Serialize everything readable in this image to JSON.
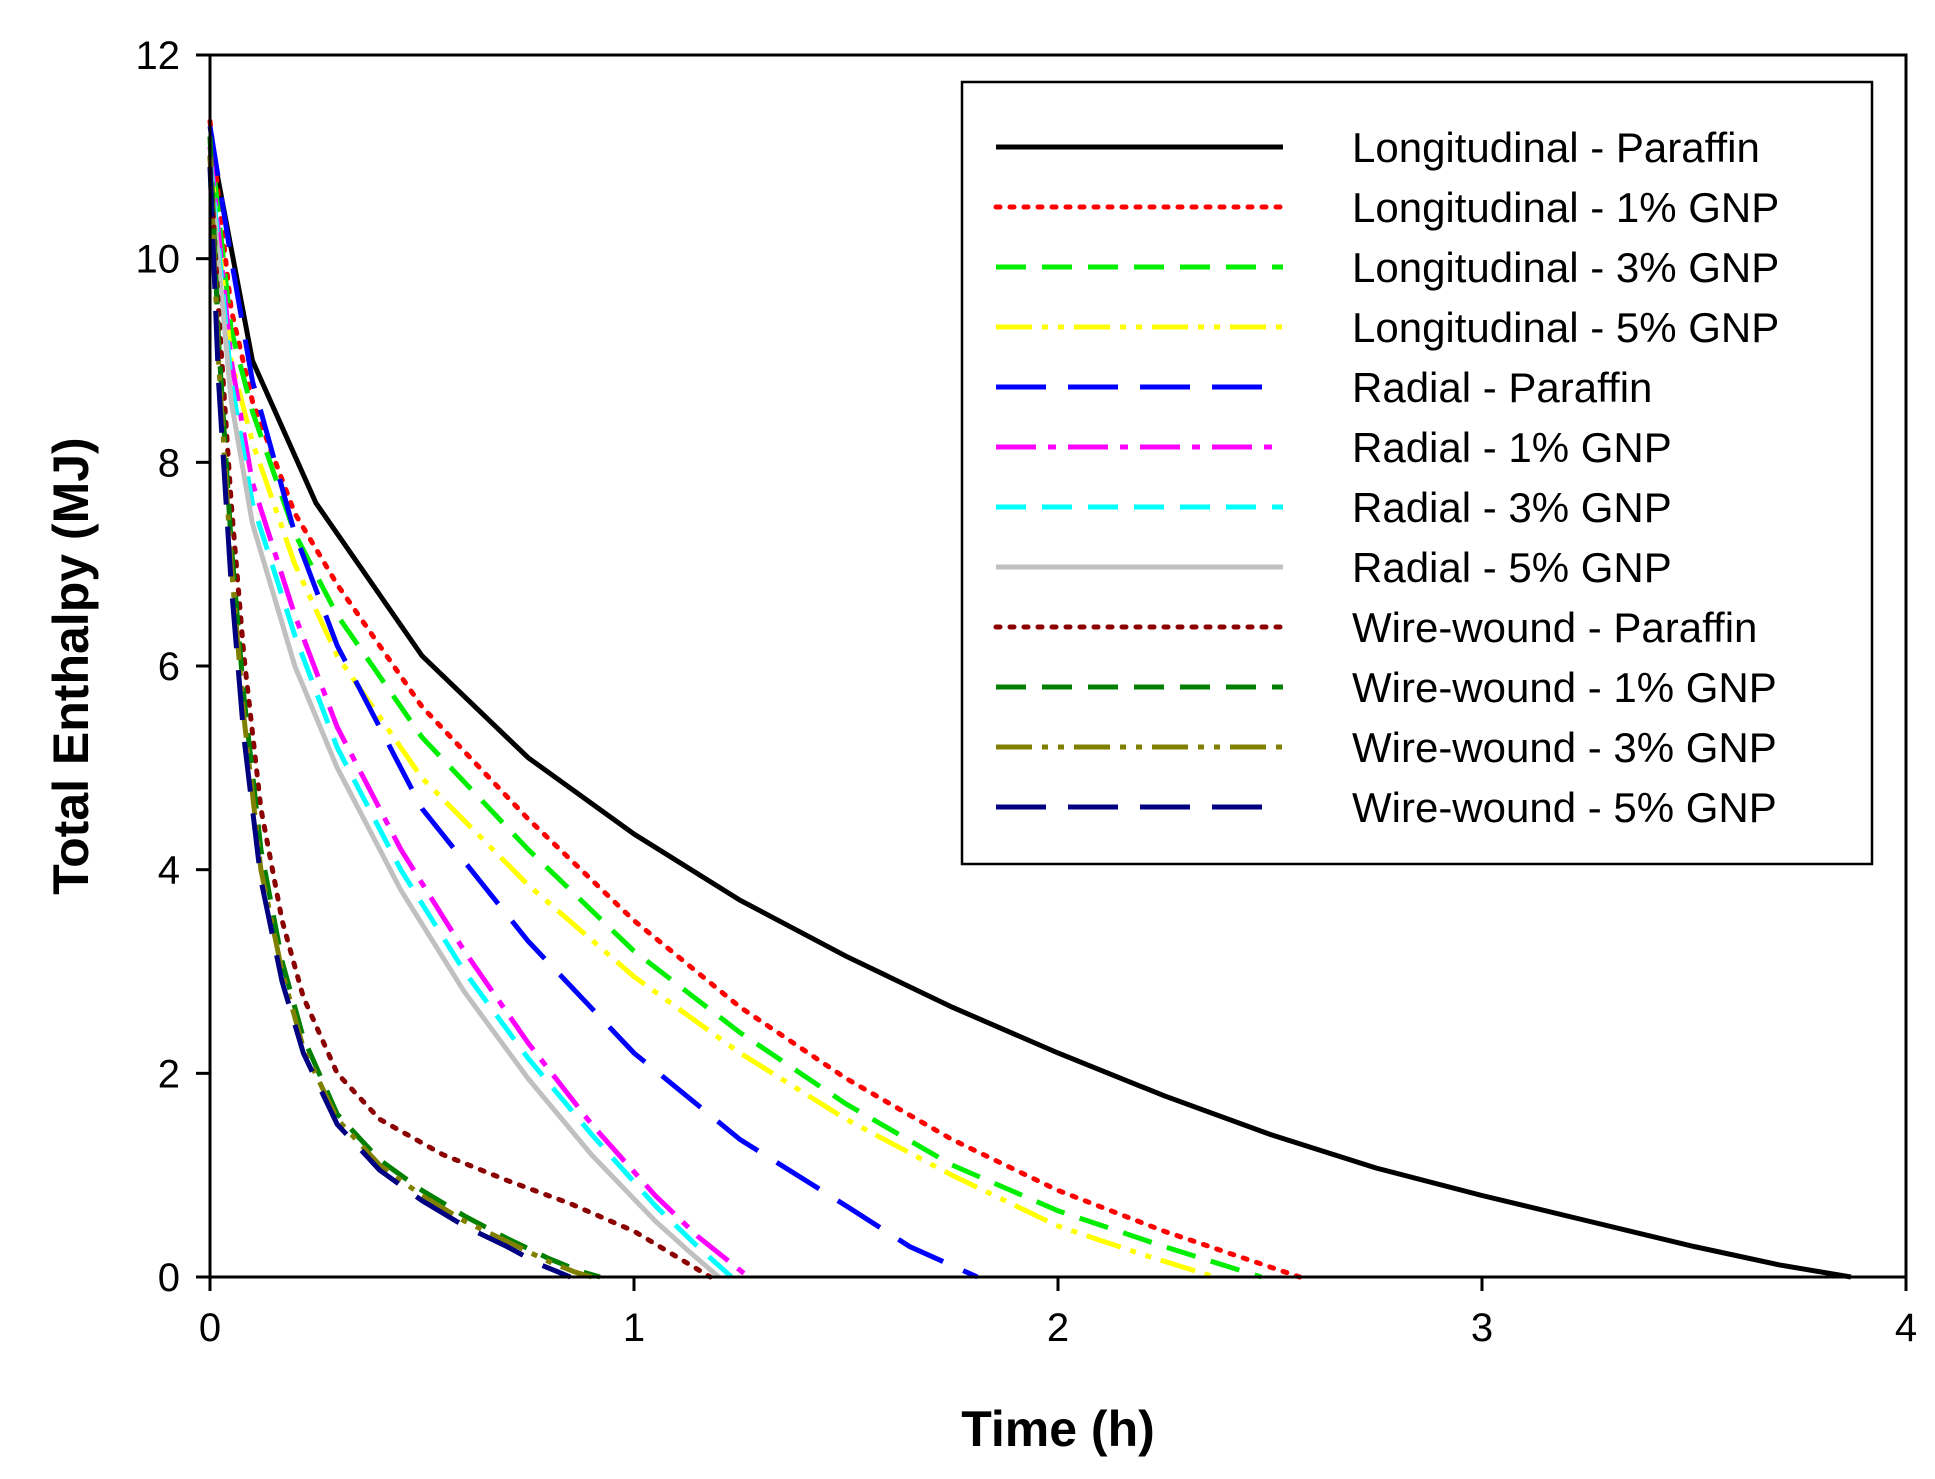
{
  "chart_data": {
    "type": "line",
    "title": "",
    "xlabel": "Time (h)",
    "ylabel": "Total Enthalpy (MJ)",
    "xlim": [
      0,
      4
    ],
    "ylim": [
      0,
      12
    ],
    "xticks": [
      0,
      1,
      2,
      3,
      4
    ],
    "yticks": [
      0,
      2,
      4,
      6,
      8,
      10,
      12
    ],
    "grid": false,
    "legend_position": "top-right",
    "series": [
      {
        "name": "Longitudinal - Paraffin",
        "color": "#000000",
        "style": "solid",
        "x": [
          0,
          0.1,
          0.25,
          0.5,
          0.75,
          1.0,
          1.25,
          1.5,
          1.75,
          2.0,
          2.25,
          2.5,
          2.75,
          3.0,
          3.25,
          3.5,
          3.7,
          3.87
        ],
        "y": [
          11.2,
          9.0,
          7.6,
          6.1,
          5.1,
          4.35,
          3.7,
          3.15,
          2.65,
          2.2,
          1.78,
          1.4,
          1.07,
          0.8,
          0.55,
          0.3,
          0.12,
          0
        ]
      },
      {
        "name": "Longitudinal - 1% GNP",
        "color": "#ff0000",
        "style": "dotted",
        "x": [
          0,
          0.05,
          0.1,
          0.2,
          0.3,
          0.5,
          0.75,
          1.0,
          1.25,
          1.5,
          1.75,
          2.0,
          2.25,
          2.57
        ],
        "y": [
          11.35,
          9.5,
          8.6,
          7.5,
          6.8,
          5.6,
          4.5,
          3.5,
          2.65,
          1.95,
          1.35,
          0.85,
          0.45,
          0
        ]
      },
      {
        "name": "Longitudinal - 3% GNP",
        "color": "#00ee00",
        "style": "dashed",
        "x": [
          0,
          0.05,
          0.1,
          0.2,
          0.3,
          0.5,
          0.75,
          1.0,
          1.25,
          1.5,
          1.75,
          2.0,
          2.25,
          2.48
        ],
        "y": [
          11.2,
          9.3,
          8.5,
          7.3,
          6.5,
          5.3,
          4.2,
          3.2,
          2.4,
          1.7,
          1.1,
          0.65,
          0.3,
          0
        ]
      },
      {
        "name": "Longitudinal - 5% GNP",
        "color": "#ffff00",
        "style": "dashdotdot",
        "x": [
          0,
          0.05,
          0.1,
          0.2,
          0.3,
          0.5,
          0.75,
          1.0,
          1.25,
          1.5,
          1.75,
          2.0,
          2.2,
          2.37
        ],
        "y": [
          11.0,
          9.0,
          8.2,
          7.0,
          6.1,
          4.9,
          3.85,
          2.95,
          2.2,
          1.55,
          1.0,
          0.5,
          0.22,
          0
        ]
      },
      {
        "name": "Radial - Paraffin",
        "color": "#0000ff",
        "style": "longdash",
        "x": [
          0,
          0.05,
          0.1,
          0.2,
          0.3,
          0.5,
          0.75,
          1.0,
          1.25,
          1.5,
          1.65,
          1.81
        ],
        "y": [
          11.3,
          10.0,
          8.8,
          7.3,
          6.2,
          4.6,
          3.3,
          2.2,
          1.35,
          0.7,
          0.3,
          0
        ]
      },
      {
        "name": "Radial - 1% GNP",
        "color": "#ff00ff",
        "style": "dashdot",
        "x": [
          0,
          0.05,
          0.1,
          0.2,
          0.3,
          0.45,
          0.6,
          0.75,
          0.9,
          1.05,
          1.15,
          1.27
        ],
        "y": [
          11.1,
          9.0,
          7.8,
          6.5,
          5.4,
          4.2,
          3.2,
          2.3,
          1.5,
          0.8,
          0.4,
          0
        ]
      },
      {
        "name": "Radial - 3% GNP",
        "color": "#00ffff",
        "style": "dashed",
        "x": [
          0,
          0.05,
          0.1,
          0.2,
          0.3,
          0.45,
          0.6,
          0.75,
          0.9,
          1.05,
          1.15,
          1.23
        ],
        "y": [
          11.0,
          8.8,
          7.6,
          6.3,
          5.2,
          4.0,
          3.0,
          2.15,
          1.4,
          0.7,
          0.3,
          0
        ]
      },
      {
        "name": "Radial - 5% GNP",
        "color": "#c0c0c0",
        "style": "solid",
        "x": [
          0,
          0.05,
          0.1,
          0.2,
          0.3,
          0.45,
          0.6,
          0.75,
          0.9,
          1.05,
          1.13,
          1.2
        ],
        "y": [
          10.9,
          8.6,
          7.4,
          6.0,
          5.0,
          3.8,
          2.8,
          1.95,
          1.2,
          0.55,
          0.25,
          0
        ]
      },
      {
        "name": "Wire-wound - Paraffin",
        "color": "#8b0000",
        "style": "dotted",
        "x": [
          0,
          0.02,
          0.05,
          0.08,
          0.12,
          0.17,
          0.22,
          0.3,
          0.4,
          0.55,
          0.7,
          0.85,
          1.0,
          1.1,
          1.18
        ],
        "y": [
          11.0,
          9.5,
          7.6,
          6.1,
          4.6,
          3.5,
          2.75,
          2.0,
          1.55,
          1.2,
          0.95,
          0.72,
          0.45,
          0.2,
          0
        ]
      },
      {
        "name": "Wire-wound - 1% GNP",
        "color": "#008000",
        "style": "dashed",
        "x": [
          0,
          0.02,
          0.05,
          0.08,
          0.12,
          0.17,
          0.22,
          0.3,
          0.4,
          0.5,
          0.6,
          0.7,
          0.8,
          0.87,
          0.92
        ],
        "y": [
          11.2,
          9.2,
          7.2,
          5.7,
          4.2,
          3.1,
          2.35,
          1.6,
          1.15,
          0.85,
          0.6,
          0.38,
          0.18,
          0.06,
          0
        ]
      },
      {
        "name": "Wire-wound - 3% GNP",
        "color": "#808000",
        "style": "dashdotdot",
        "x": [
          0,
          0.02,
          0.05,
          0.08,
          0.12,
          0.17,
          0.22,
          0.3,
          0.4,
          0.5,
          0.6,
          0.7,
          0.8,
          0.86,
          0.9
        ],
        "y": [
          11.0,
          9.0,
          7.0,
          5.5,
          4.0,
          3.0,
          2.25,
          1.55,
          1.1,
          0.8,
          0.55,
          0.35,
          0.15,
          0.05,
          0
        ]
      },
      {
        "name": "Wire-wound - 5% GNP",
        "color": "#000080",
        "style": "longdash",
        "x": [
          0,
          0.02,
          0.05,
          0.08,
          0.12,
          0.17,
          0.22,
          0.3,
          0.4,
          0.5,
          0.6,
          0.7,
          0.78,
          0.85
        ],
        "y": [
          10.9,
          8.8,
          6.8,
          5.3,
          3.9,
          2.9,
          2.2,
          1.5,
          1.05,
          0.75,
          0.5,
          0.3,
          0.12,
          0
        ]
      }
    ]
  }
}
